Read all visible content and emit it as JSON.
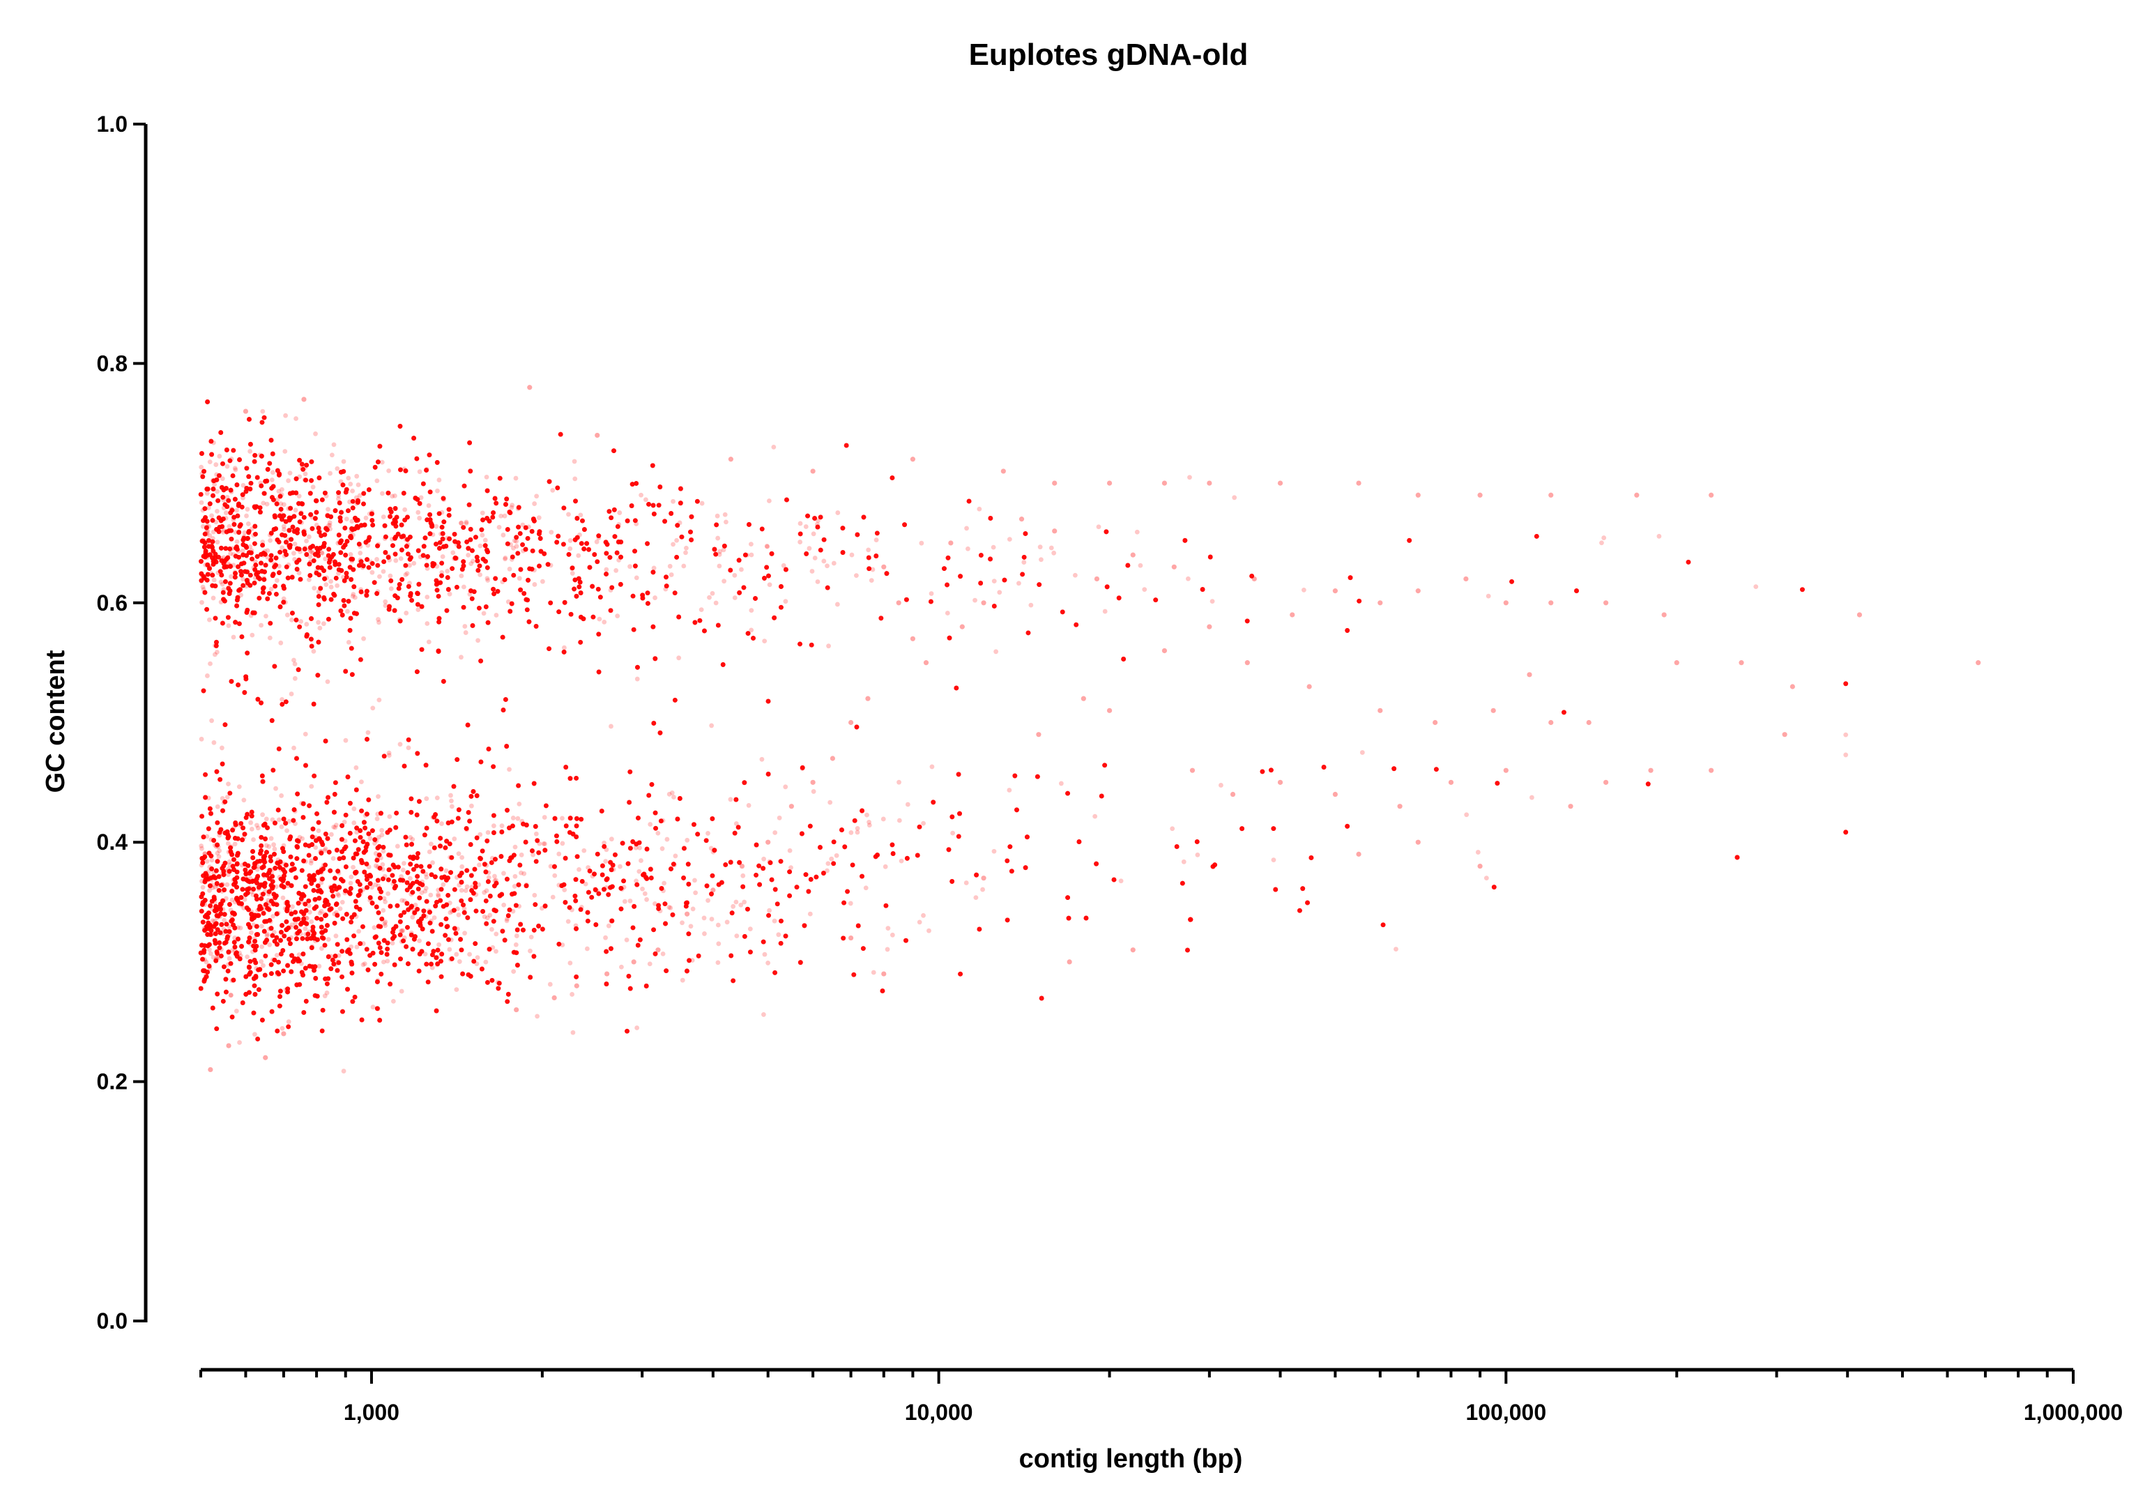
{
  "chart_data": {
    "type": "scatter",
    "title": "Euplotes gDNA-old",
    "xlabel": "contig length (bp)",
    "ylabel": "GC content",
    "x_scale": "log",
    "xlim": [
      500,
      1000000
    ],
    "ylim": [
      0.0,
      1.0
    ],
    "grid": false,
    "legend": "none",
    "point_color": "#ff0000",
    "x_ticks": [
      {
        "value": 1000,
        "label": "1,000"
      },
      {
        "value": 10000,
        "label": "10,000"
      },
      {
        "value": 100000,
        "label": "100,000"
      },
      {
        "value": 1000000,
        "label": "1,000,000"
      }
    ],
    "y_ticks": [
      {
        "value": 0.0,
        "label": "0.0"
      },
      {
        "value": 0.2,
        "label": "0.2"
      },
      {
        "value": 0.4,
        "label": "0.4"
      },
      {
        "value": 0.6,
        "label": "0.6"
      },
      {
        "value": 0.8,
        "label": "0.8"
      },
      {
        "value": 1.0,
        "label": "1.0"
      }
    ],
    "series": [
      {
        "points": [
          [
            520,
            0.21
          ],
          [
            560,
            0.23
          ],
          [
            650,
            0.22
          ],
          [
            700,
            0.24
          ],
          [
            1900,
            0.78
          ],
          [
            760,
            0.77
          ],
          [
            600,
            0.76
          ],
          [
            2500,
            0.74
          ],
          [
            4300,
            0.72
          ],
          [
            6000,
            0.71
          ],
          [
            9000,
            0.72
          ],
          [
            13000,
            0.71
          ],
          [
            16000,
            0.7
          ],
          [
            20000,
            0.7
          ],
          [
            25000,
            0.7
          ],
          [
            30000,
            0.7
          ],
          [
            40000,
            0.7
          ],
          [
            55000,
            0.7
          ],
          [
            70000,
            0.69
          ],
          [
            90000,
            0.69
          ],
          [
            120000,
            0.69
          ],
          [
            170000,
            0.69
          ],
          [
            230000,
            0.69
          ],
          [
            8000,
            0.29
          ],
          [
            17000,
            0.3
          ],
          [
            22000,
            0.31
          ],
          [
            12000,
            0.37
          ],
          [
            90000,
            0.38
          ],
          [
            55000,
            0.39
          ],
          [
            70000,
            0.4
          ],
          [
            7000,
            0.32
          ],
          [
            420000,
            0.59
          ],
          [
            680000,
            0.55
          ],
          [
            320000,
            0.53
          ],
          [
            310000,
            0.49
          ],
          [
            260000,
            0.55
          ],
          [
            230000,
            0.46
          ],
          [
            200000,
            0.55
          ],
          [
            180000,
            0.46
          ],
          [
            150000,
            0.45
          ],
          [
            130000,
            0.43
          ],
          [
            120000,
            0.5
          ],
          [
            100000,
            0.46
          ],
          [
            80000,
            0.45
          ],
          [
            65000,
            0.43
          ],
          [
            50000,
            0.44
          ],
          [
            40000,
            0.45
          ],
          [
            33000,
            0.44
          ],
          [
            28000,
            0.46
          ],
          [
            150000,
            0.6
          ],
          [
            120000,
            0.6
          ],
          [
            100000,
            0.6
          ],
          [
            85000,
            0.62
          ],
          [
            70000,
            0.61
          ],
          [
            60000,
            0.6
          ],
          [
            50000,
            0.61
          ],
          [
            42000,
            0.59
          ],
          [
            36000,
            0.62
          ],
          [
            30000,
            0.58
          ],
          [
            25000,
            0.56
          ],
          [
            20000,
            0.51
          ],
          [
            18000,
            0.52
          ],
          [
            15000,
            0.49
          ],
          [
            45000,
            0.53
          ],
          [
            60000,
            0.51
          ],
          [
            75000,
            0.5
          ],
          [
            95000,
            0.51
          ],
          [
            140000,
            0.5
          ],
          [
            190000,
            0.59
          ],
          [
            110000,
            0.54
          ],
          [
            35000,
            0.55
          ],
          [
            26000,
            0.63
          ],
          [
            22000,
            0.64
          ],
          [
            19000,
            0.62
          ],
          [
            16000,
            0.66
          ],
          [
            14000,
            0.67
          ],
          [
            12000,
            0.6
          ],
          [
            11000,
            0.58
          ],
          [
            10500,
            0.65
          ],
          [
            9500,
            0.55
          ],
          [
            9000,
            0.57
          ],
          [
            8500,
            0.6
          ],
          [
            8000,
            0.63
          ],
          [
            7500,
            0.52
          ],
          [
            7000,
            0.5
          ],
          [
            6500,
            0.47
          ],
          [
            6000,
            0.45
          ],
          [
            5500,
            0.43
          ],
          [
            5000,
            0.4
          ],
          [
            4500,
            0.38
          ],
          [
            4000,
            0.36
          ],
          [
            3600,
            0.34
          ],
          [
            3200,
            0.31
          ],
          [
            2900,
            0.3
          ],
          [
            2600,
            0.29
          ],
          [
            2300,
            0.28
          ],
          [
            2100,
            0.27
          ],
          [
            1800,
            0.26
          ]
        ]
      }
    ]
  }
}
